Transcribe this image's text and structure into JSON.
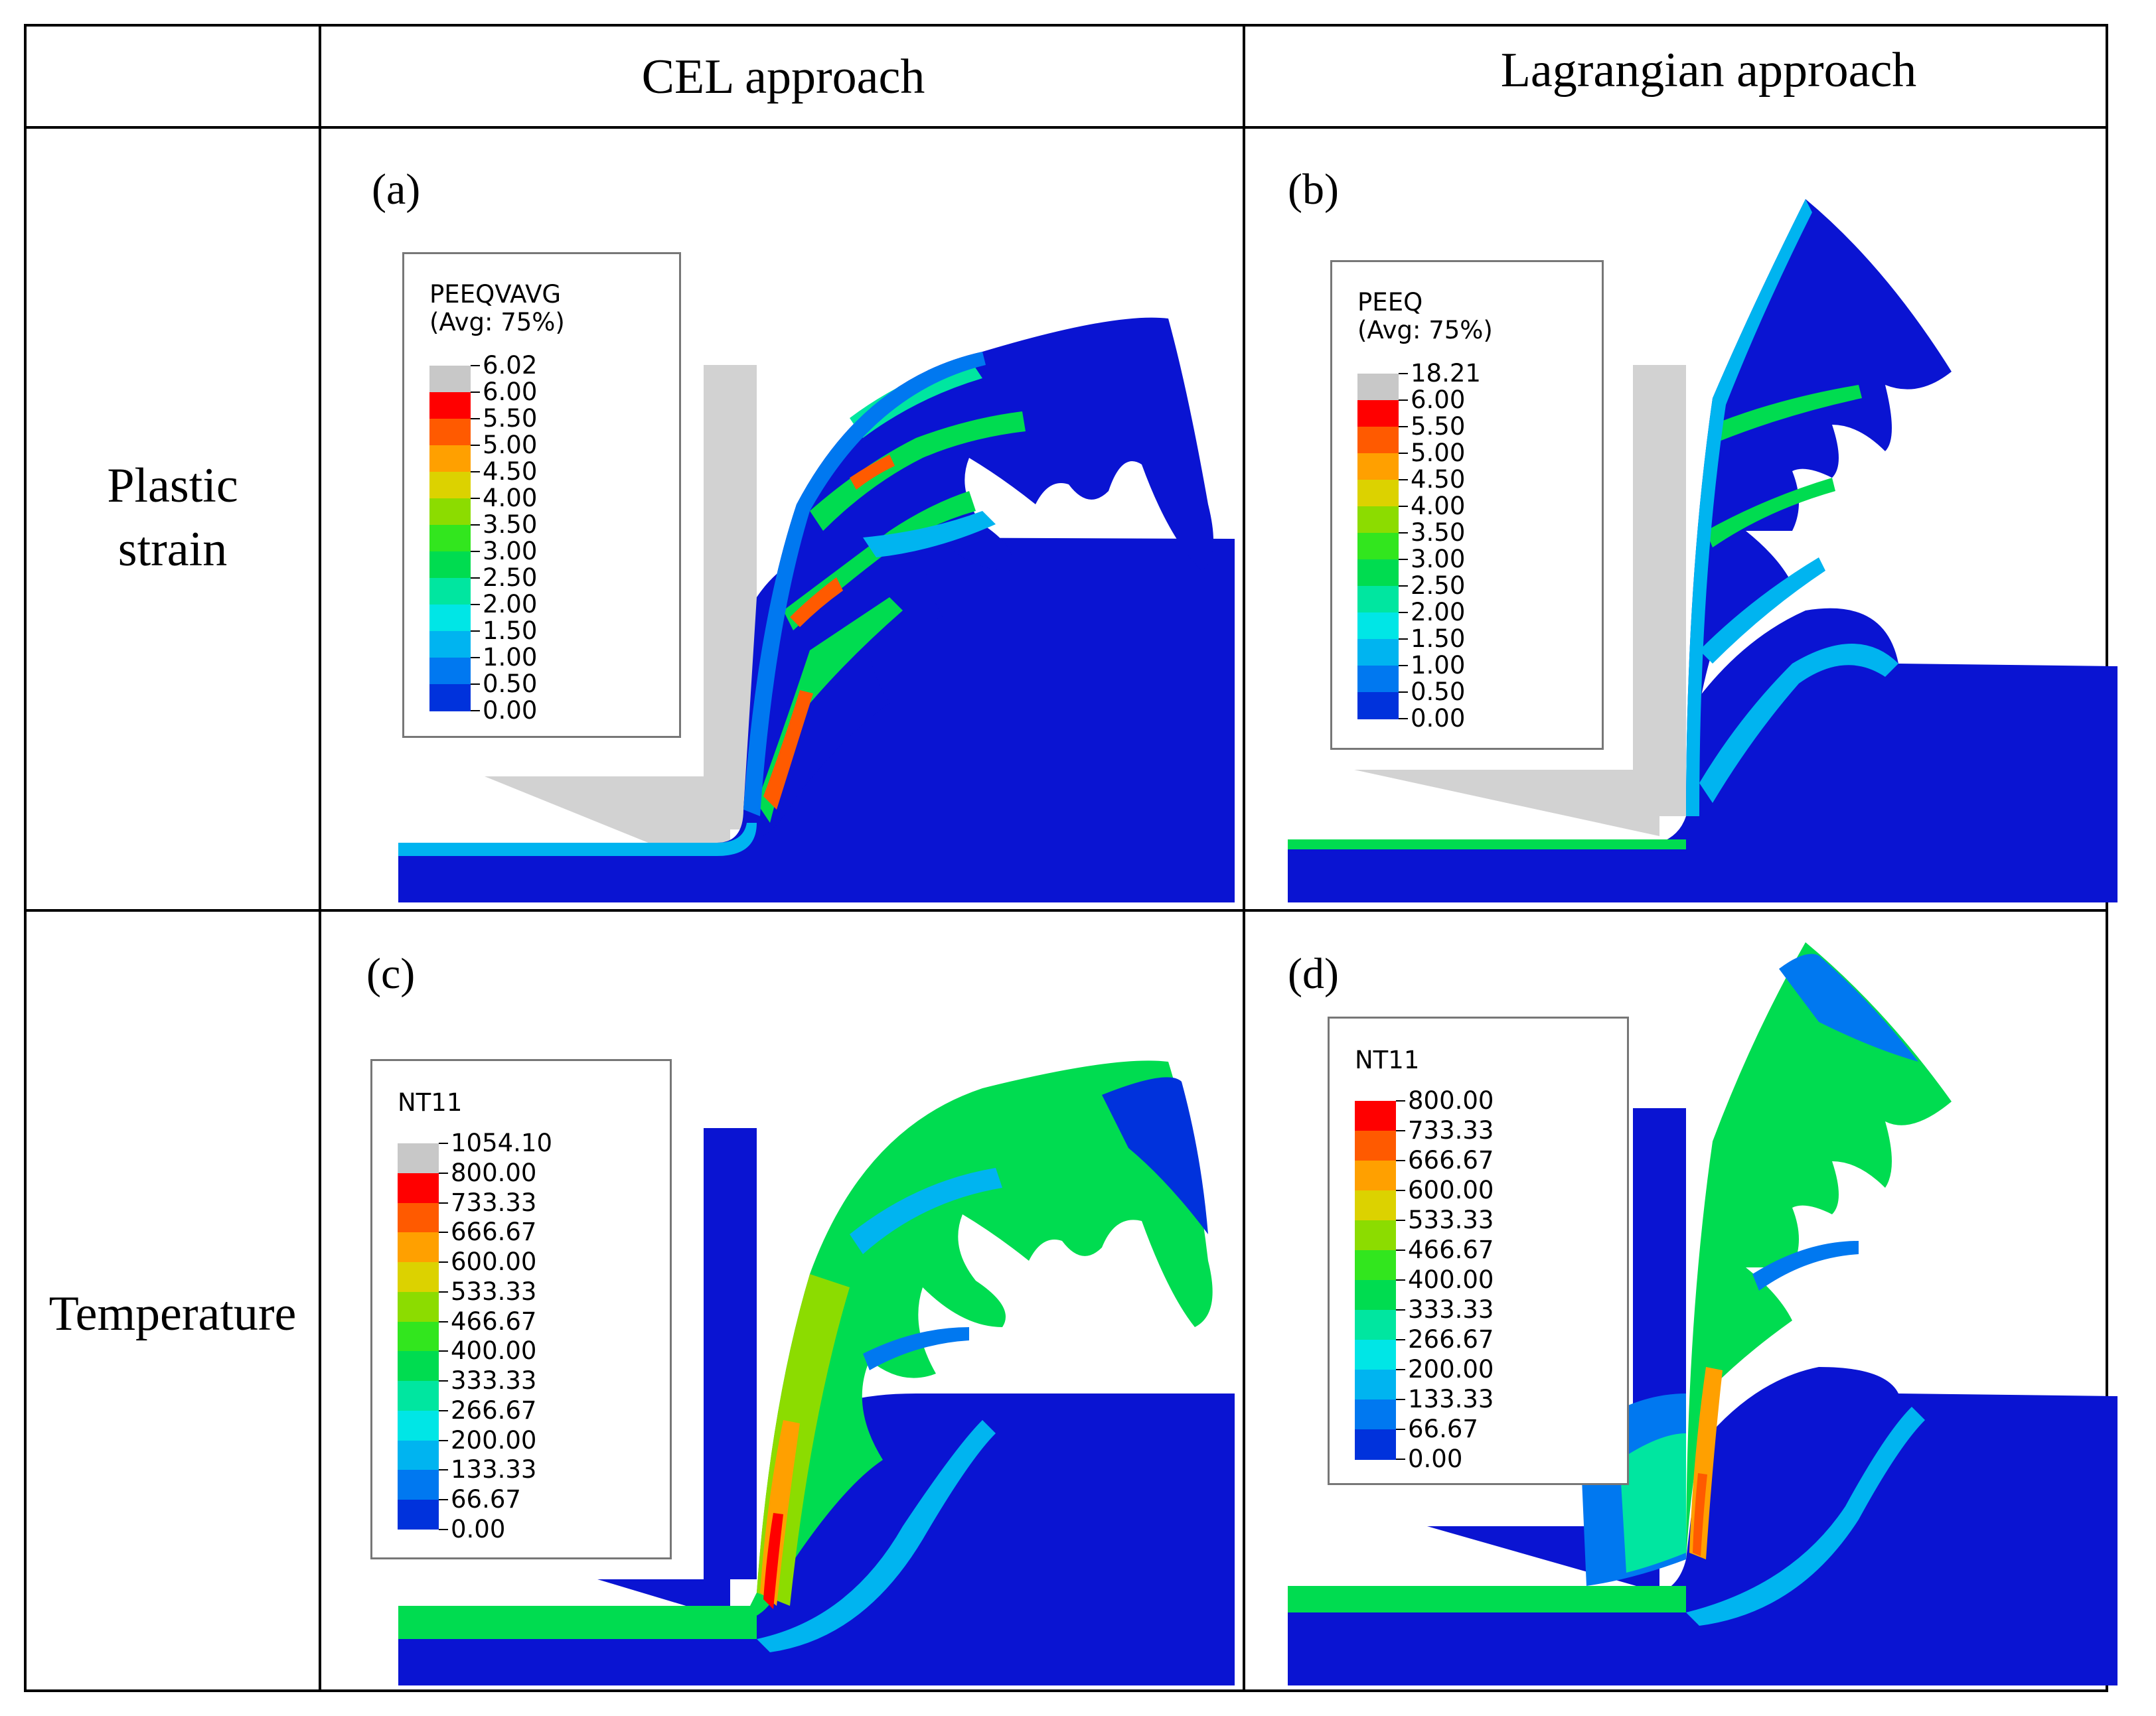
{
  "header": {
    "col1": "CEL approach",
    "col2": "Lagrangian approach"
  },
  "rows": {
    "plastic_strain": "Plastic\nstrain",
    "temperature": "Temperature"
  },
  "panels": {
    "a": {
      "label": "(a)",
      "legend": {
        "title_line1": "PEEQVAVG",
        "title_line2": "(Avg: 75%)",
        "values": [
          "6.02",
          "6.00",
          "5.50",
          "5.00",
          "4.50",
          "4.00",
          "3.50",
          "3.00",
          "2.50",
          "2.00",
          "1.50",
          "1.00",
          "0.50",
          "0.00"
        ]
      }
    },
    "b": {
      "label": "(b)",
      "legend": {
        "title_line1": "PEEQ",
        "title_line2": "(Avg: 75%)",
        "values": [
          "18.21",
          "6.00",
          "5.50",
          "5.00",
          "4.50",
          "4.00",
          "3.50",
          "3.00",
          "2.50",
          "2.00",
          "1.50",
          "1.00",
          "0.50",
          "0.00"
        ]
      }
    },
    "c": {
      "label": "(c)",
      "legend": {
        "title_line1": "NT11",
        "values": [
          "1054.10",
          "800.00",
          "733.33",
          "666.67",
          "600.00",
          "533.33",
          "466.67",
          "400.00",
          "333.33",
          "266.67",
          "200.00",
          "133.33",
          "66.67",
          "0.00"
        ]
      }
    },
    "d": {
      "label": "(d)",
      "legend": {
        "title_line1": "NT11",
        "values": [
          "800.00",
          "733.33",
          "666.67",
          "600.00",
          "533.33",
          "466.67",
          "400.00",
          "333.33",
          "266.67",
          "200.00",
          "133.33",
          "66.67",
          "0.00"
        ]
      }
    }
  },
  "colors": {
    "overflow": "#c8c8c8",
    "contour": [
      "#ff0000",
      "#ff5a00",
      "#ffa000",
      "#dcd200",
      "#8cdc00",
      "#32e61e",
      "#00dc50",
      "#00e6a0",
      "#00e6e6",
      "#00b4f0",
      "#0078f0",
      "#0032dc"
    ],
    "contour_lagr": [
      "#ff0000",
      "#ff5a00",
      "#ffa000",
      "#dcd200",
      "#8cdc00",
      "#32e61e",
      "#00dc50",
      "#00e6a0",
      "#00e6e6",
      "#00b4f0",
      "#0078f0",
      "#0032dc"
    ],
    "base_blue": "#0a14d2",
    "tool_gray": "#d2d2d2"
  }
}
